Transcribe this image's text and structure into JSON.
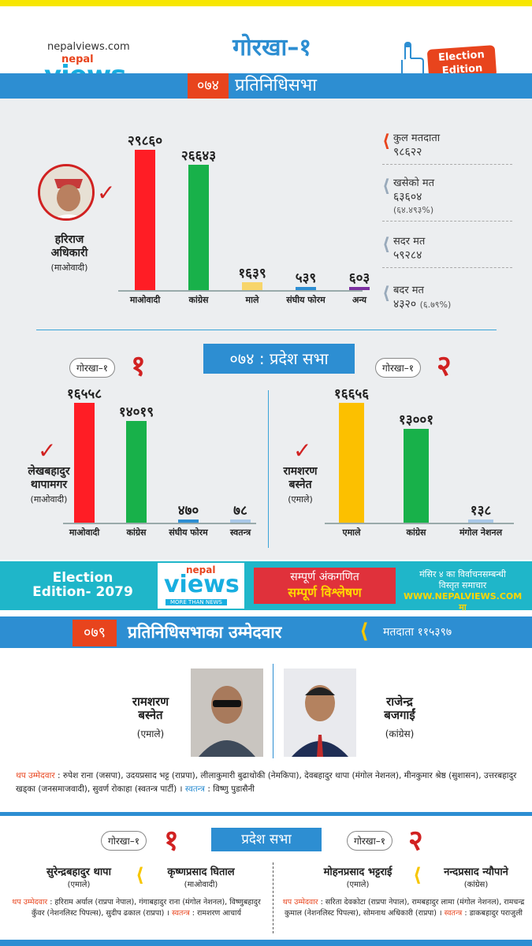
{
  "header": {
    "site": "nepalviews.com",
    "logo": {
      "top": "nepal",
      "main": "views",
      "tagline": "MORE THAN NEWS"
    },
    "constituency": "गोरखा–१",
    "badge": {
      "line1": "Election",
      "line2": "Edition"
    },
    "year_74": "०७४",
    "hor_label": "प्रतिनिधिसभा"
  },
  "hor_2074": {
    "winner": {
      "name1": "हरिराज",
      "name2": "अधिकारी",
      "party": "(माओवादी)"
    },
    "chart_data": {
      "type": "bar",
      "categories": [
        "माओवादी",
        "कांग्रेस",
        "माले",
        "संघीय फोरम",
        "अन्य"
      ],
      "value_labels": [
        "२९८६०",
        "२६६४३",
        "१६३९",
        "५३९",
        "६०३"
      ],
      "values": [
        29860,
        26643,
        1639,
        539,
        603
      ],
      "colors": [
        "#ff1d25",
        "#18b14a",
        "#f7d56b",
        "#2d8ed2",
        "#7b2fa0"
      ]
    },
    "stats": [
      {
        "label": "कुल मतदाता",
        "value": "९८६२२",
        "sub": ""
      },
      {
        "label": "खसेको मत",
        "value": "६३६०४",
        "sub": "(६४.४९३%)"
      },
      {
        "label": "सदर मत",
        "value": "५९२८४",
        "sub": ""
      },
      {
        "label": "बदर मत",
        "value": "४३२०",
        "sub": "(६.७९%)"
      }
    ]
  },
  "pradesh_2074": {
    "label": "०७४ : प्रदेश सभा",
    "left": {
      "tag": "गोरखा–१",
      "num": "१",
      "winner": {
        "name1": "लेखबहादुर",
        "name2": "थापामगर",
        "party": "(माओवादी)"
      },
      "chart_data": {
        "type": "bar",
        "categories": [
          "माओवादी",
          "कांग्रेस",
          "संघीय फोरम",
          "स्वतन्त्र"
        ],
        "value_labels": [
          "१६५५८",
          "१४०१९",
          "४७०",
          "७८"
        ],
        "values": [
          16558,
          14019,
          470,
          78
        ],
        "colors": [
          "#ff1d25",
          "#18b14a",
          "#2d8ed2",
          "#a9c8e8"
        ]
      }
    },
    "right": {
      "tag": "गोरखा–१",
      "num": "२",
      "winner": {
        "name1": "रामशरण",
        "name2": "बस्नेत",
        "party": "(एमाले)"
      },
      "chart_data": {
        "type": "bar",
        "categories": [
          "एमाले",
          "कांग्रेस",
          "मंगोल नेशनल"
        ],
        "value_labels": [
          "१६६५६",
          "१३००१",
          "१३८"
        ],
        "values": [
          16656,
          13001,
          138
        ],
        "colors": [
          "#fcc000",
          "#18b14a",
          "#a9c8e8"
        ]
      }
    }
  },
  "banner": {
    "edition": "Election Edition- 2079",
    "red1": "सम्पूर्ण अंकगणित",
    "red2": "सम्पूर्ण विश्लेषण",
    "right1": "मंसिर ४ का विर्वाचनसम्बन्धी",
    "right2": "विस्तृत समाचार",
    "url": "WWW.NEPALVIEWS.COM मा"
  },
  "hor_2079": {
    "year": "०७९",
    "label": "प्रतिनिधिसभाका उम्मेदवार",
    "voters": "मतदाता ११५३९७",
    "cand_left": {
      "name1": "रामशरण",
      "name2": "बस्नेत",
      "party": "(एमाले)"
    },
    "cand_right": {
      "name1": "राजेन्द्र",
      "name2": "बजगाईं",
      "party": "(कांग्रेस)"
    },
    "others_label": "थप उम्मेदवार",
    "others_text": ": रुपेश राना (जसपा), उदयप्रसाद भट्ट (राप्रपा), लीलाकुमारी बुढाथोकी (नेमकिपा), देवबहादुर थापा (मंगोल नेशनल), मीनकुमार श्रेष्ठ (सुशासन), उत्तरबहादुर खड्का (जनसमाजवादी), सुवर्ण रोकाहा (स्वतन्त्र पार्टी) ।",
    "ind_label": "स्वतन्त्र",
    "ind_text": ": विष्णु पुडासैनी"
  },
  "pradesh_2079": {
    "label": "प्रदेश सभा",
    "left": {
      "tag": "गोरखा–१",
      "num": "१",
      "c1": {
        "name": "सुरेन्द्रबहादुर थापा",
        "party": "(एमाले)"
      },
      "c2": {
        "name": "कृष्णप्रसाद घिताल",
        "party": "(माओवादी)"
      },
      "others_label": "थप उम्मेदवार",
      "others": ": हरिराम अर्याल (राप्रपा नेपाल), गंगाबहादुर राना (मंगोल नेशनल), विष्णुबहादुर कुँवर (नेशनलिस्ट पिपल्स), सुदीप ढकाल (राप्रपा) ।",
      "ind_label": "स्वतन्त्र",
      "ind": ": रामशरण आचार्य"
    },
    "right": {
      "tag": "गोरखा–१",
      "num": "२",
      "c1": {
        "name": "मोहनप्रसाद भट्टराई",
        "party": "(एमाले)"
      },
      "c2": {
        "name": "नन्दप्रसाद न्यौपाने",
        "party": "(कांग्रेस)"
      },
      "others_label": "थप उम्मेदवार",
      "others": ": सरिता देवकोटा (राप्रपा नेपाल), रामबहादुर लामा (मंगोल नेशनल), रामचन्द्र कुमाल (नेशनलिस्ट पिपल्स), सोमनाथ अधिकारी (राप्रपा) ।",
      "ind_label": "स्वतन्त्र",
      "ind": ": डाकबहादुर पराजुली"
    }
  }
}
